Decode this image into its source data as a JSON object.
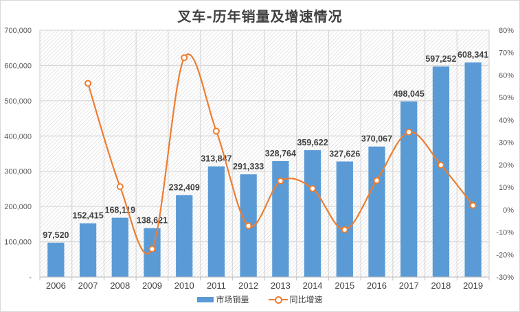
{
  "chart_data": {
    "type": "bar+line",
    "title": "叉车-历年销量及增速情况",
    "categories": [
      "2006",
      "2007",
      "2008",
      "2009",
      "2010",
      "2011",
      "2012",
      "2013",
      "2014",
      "2015",
      "2016",
      "2017",
      "2018",
      "2019"
    ],
    "series": [
      {
        "name": "市场销量",
        "type": "bar",
        "axis": "left",
        "color": "#5b9bd5",
        "values": [
          97520,
          152415,
          168119,
          138621,
          232409,
          313847,
          291333,
          328764,
          359622,
          327626,
          370067,
          498045,
          597252,
          608341
        ],
        "labels": [
          "97,520",
          "152,415",
          "168,119",
          "138,621",
          "232,409",
          "313,847",
          "291,333",
          "328,764",
          "359,622",
          "327,626",
          "370,067",
          "498,045",
          "597,252",
          "608,341"
        ]
      },
      {
        "name": "同比增速",
        "type": "line",
        "smooth": true,
        "axis": "right",
        "color": "#ed7d31",
        "values": [
          null,
          56.3,
          10.3,
          -17.5,
          67.7,
          35.0,
          -7.2,
          12.8,
          9.4,
          -8.9,
          13.0,
          34.6,
          19.9,
          1.9
        ]
      }
    ],
    "y_left": {
      "range": [
        0,
        700000
      ],
      "ticks": [
        "-",
        "100,000",
        "200,000",
        "300,000",
        "400,000",
        "500,000",
        "600,000",
        "700,000"
      ]
    },
    "y_right": {
      "range": [
        -30,
        80
      ],
      "ticks": [
        "-30%",
        "-20%",
        "-10%",
        "0%",
        "10%",
        "20%",
        "30%",
        "40%",
        "50%",
        "60%",
        "70%",
        "80%"
      ]
    },
    "xlabel": "",
    "ylabel": "",
    "grid": true,
    "legend_position": "bottom"
  },
  "legend": [
    {
      "label": "市场销量",
      "kind": "bar",
      "color": "#5b9bd5"
    },
    {
      "label": "同比增速",
      "kind": "line",
      "color": "#ed7d31"
    }
  ]
}
